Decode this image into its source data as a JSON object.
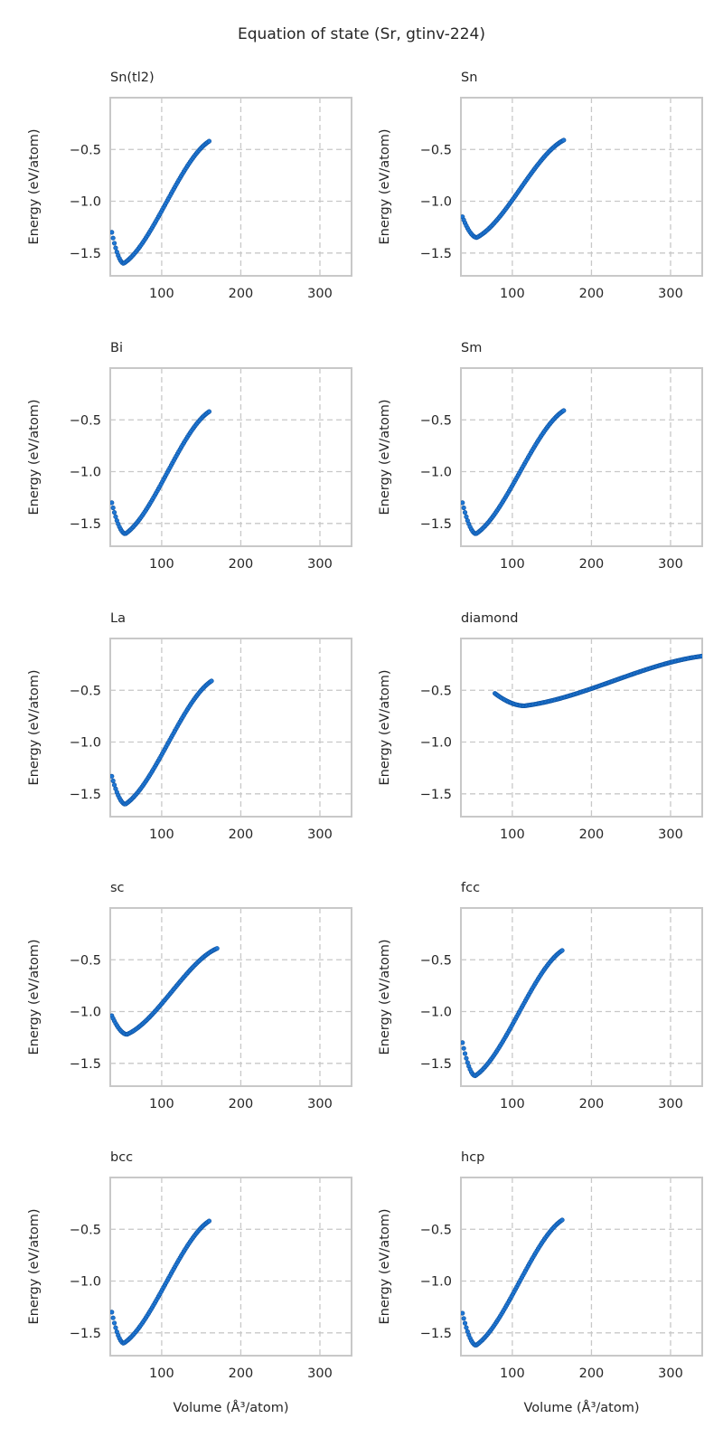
{
  "figure": {
    "title": "Equation of state (Sr, gtinv-224)",
    "colors": {
      "points": "#1f77d4",
      "point_edge": "#0b4f9e",
      "grid": "#c8c8c8",
      "frame": "#c8c8c8",
      "text": "#262626"
    }
  },
  "chart_data": [
    {
      "type": "scatter",
      "title": "Sn(tl2)",
      "xlabel": "",
      "ylabel": "Energy (eV/atom)",
      "xlim": [
        35,
        340
      ],
      "ylim": [
        -1.72,
        0.0
      ],
      "xticks": [
        100,
        200,
        300
      ],
      "yticks": [
        -0.5,
        -1.0,
        -1.5
      ],
      "tick_labels_x": [
        "100",
        "200",
        "300"
      ],
      "tick_labels_y": [
        "−0.5",
        "−1.0",
        "−1.5"
      ],
      "grid": true,
      "curve": {
        "x_min": 37,
        "x_max": 160,
        "v0": 52,
        "e0": -1.6,
        "e_start": -1.3,
        "e_end": -0.42
      }
    },
    {
      "type": "scatter",
      "title": "Sn",
      "xlabel": "",
      "ylabel": "Energy (eV/atom)",
      "xlim": [
        35,
        340
      ],
      "ylim": [
        -1.72,
        0.0
      ],
      "xticks": [
        100,
        200,
        300
      ],
      "yticks": [
        -0.5,
        -1.0,
        -1.5
      ],
      "tick_labels_x": [
        "100",
        "200",
        "300"
      ],
      "tick_labels_y": [
        "−0.5",
        "−1.0",
        "−1.5"
      ],
      "grid": true,
      "curve": {
        "x_min": 37,
        "x_max": 165,
        "v0": 55,
        "e0": -1.35,
        "e_start": -1.15,
        "e_end": -0.41
      }
    },
    {
      "type": "scatter",
      "title": "Bi",
      "xlabel": "",
      "ylabel": "Energy (eV/atom)",
      "xlim": [
        35,
        340
      ],
      "ylim": [
        -1.72,
        0.0
      ],
      "xticks": [
        100,
        200,
        300
      ],
      "yticks": [
        -0.5,
        -1.0,
        -1.5
      ],
      "tick_labels_x": [
        "100",
        "200",
        "300"
      ],
      "tick_labels_y": [
        "−0.5",
        "−1.0",
        "−1.5"
      ],
      "grid": true,
      "curve": {
        "x_min": 37,
        "x_max": 160,
        "v0": 54,
        "e0": -1.6,
        "e_start": -1.3,
        "e_end": -0.42
      }
    },
    {
      "type": "scatter",
      "title": "Sm",
      "xlabel": "",
      "ylabel": "Energy (eV/atom)",
      "xlim": [
        35,
        340
      ],
      "ylim": [
        -1.72,
        0.0
      ],
      "xticks": [
        100,
        200,
        300
      ],
      "yticks": [
        -0.5,
        -1.0,
        -1.5
      ],
      "tick_labels_x": [
        "100",
        "200",
        "300"
      ],
      "tick_labels_y": [
        "−0.5",
        "−1.0",
        "−1.5"
      ],
      "grid": true,
      "curve": {
        "x_min": 37,
        "x_max": 165,
        "v0": 54,
        "e0": -1.6,
        "e_start": -1.3,
        "e_end": -0.41
      }
    },
    {
      "type": "scatter",
      "title": "La",
      "xlabel": "",
      "ylabel": "Energy (eV/atom)",
      "xlim": [
        35,
        340
      ],
      "ylim": [
        -1.72,
        0.0
      ],
      "xticks": [
        100,
        200,
        300
      ],
      "yticks": [
        -0.5,
        -1.0,
        -1.5
      ],
      "tick_labels_x": [
        "100",
        "200",
        "300"
      ],
      "tick_labels_y": [
        "−0.5",
        "−1.0",
        "−1.5"
      ],
      "grid": true,
      "curve": {
        "x_min": 37,
        "x_max": 163,
        "v0": 54,
        "e0": -1.6,
        "e_start": -1.33,
        "e_end": -0.41
      }
    },
    {
      "type": "scatter",
      "title": "diamond",
      "xlabel": "",
      "ylabel": "Energy (eV/atom)",
      "xlim": [
        35,
        340
      ],
      "ylim": [
        -1.72,
        0.0
      ],
      "xticks": [
        100,
        200,
        300
      ],
      "yticks": [
        -0.5,
        -1.0,
        -1.5
      ],
      "tick_labels_x": [
        "100",
        "200",
        "300"
      ],
      "tick_labels_y": [
        "−0.5",
        "−1.0",
        "−1.5"
      ],
      "grid": true,
      "curve": {
        "x_min": 78,
        "x_max": 340,
        "v0": 115,
        "e0": -0.65,
        "e_start": -0.53,
        "e_end": -0.17
      }
    },
    {
      "type": "scatter",
      "title": "sc",
      "xlabel": "",
      "ylabel": "Energy (eV/atom)",
      "xlim": [
        35,
        340
      ],
      "ylim": [
        -1.72,
        0.0
      ],
      "xticks": [
        100,
        200,
        300
      ],
      "yticks": [
        -0.5,
        -1.0,
        -1.5
      ],
      "tick_labels_x": [
        "100",
        "200",
        "300"
      ],
      "tick_labels_y": [
        "−0.5",
        "−1.0",
        "−1.5"
      ],
      "grid": true,
      "curve": {
        "x_min": 37,
        "x_max": 170,
        "v0": 56,
        "e0": -1.22,
        "e_start": -1.04,
        "e_end": -0.39
      }
    },
    {
      "type": "scatter",
      "title": "fcc",
      "xlabel": "",
      "ylabel": "Energy (eV/atom)",
      "xlim": [
        35,
        340
      ],
      "ylim": [
        -1.72,
        0.0
      ],
      "xticks": [
        100,
        200,
        300
      ],
      "yticks": [
        -0.5,
        -1.0,
        -1.5
      ],
      "tick_labels_x": [
        "100",
        "200",
        "300"
      ],
      "tick_labels_y": [
        "−0.5",
        "−1.0",
        "−1.5"
      ],
      "grid": true,
      "curve": {
        "x_min": 37,
        "x_max": 163,
        "v0": 53,
        "e0": -1.62,
        "e_start": -1.3,
        "e_end": -0.41
      }
    },
    {
      "type": "scatter",
      "title": "bcc",
      "xlabel": "Volume (Å³/atom)",
      "ylabel": "Energy (eV/atom)",
      "xlim": [
        35,
        340
      ],
      "ylim": [
        -1.72,
        0.0
      ],
      "xticks": [
        100,
        200,
        300
      ],
      "yticks": [
        -0.5,
        -1.0,
        -1.5
      ],
      "tick_labels_x": [
        "100",
        "200",
        "300"
      ],
      "tick_labels_y": [
        "−0.5",
        "−1.0",
        "−1.5"
      ],
      "grid": true,
      "curve": {
        "x_min": 37,
        "x_max": 160,
        "v0": 52,
        "e0": -1.6,
        "e_start": -1.3,
        "e_end": -0.42
      }
    },
    {
      "type": "scatter",
      "title": "hcp",
      "xlabel": "Volume (Å³/atom)",
      "ylabel": "Energy (eV/atom)",
      "xlim": [
        35,
        340
      ],
      "ylim": [
        -1.72,
        0.0
      ],
      "xticks": [
        100,
        200,
        300
      ],
      "yticks": [
        -0.5,
        -1.0,
        -1.5
      ],
      "tick_labels_x": [
        "100",
        "200",
        "300"
      ],
      "tick_labels_y": [
        "−0.5",
        "−1.0",
        "−1.5"
      ],
      "grid": true,
      "curve": {
        "x_min": 37,
        "x_max": 163,
        "v0": 54,
        "e0": -1.62,
        "e_start": -1.31,
        "e_end": -0.41
      }
    }
  ]
}
